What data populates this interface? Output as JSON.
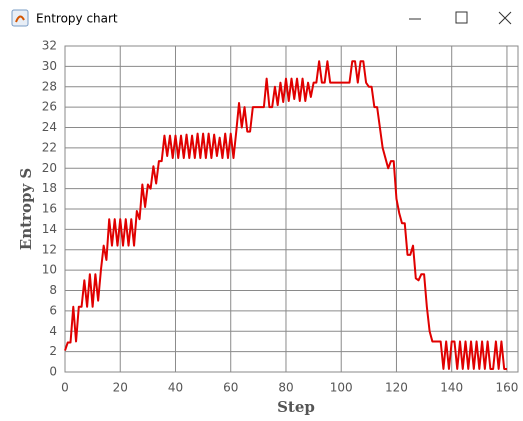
{
  "window": {
    "title": "Entropy chart"
  },
  "chart_data": {
    "type": "line",
    "xlabel": "Step",
    "ylabel": "Entropy S",
    "color": "#e00000",
    "grid": true,
    "xlim": [
      0,
      164
    ],
    "ylim": [
      0,
      32
    ],
    "xticks": [
      0,
      20,
      40,
      60,
      80,
      100,
      120,
      140,
      160
    ],
    "yticks": [
      0,
      2,
      4,
      6,
      8,
      10,
      12,
      14,
      16,
      18,
      20,
      22,
      24,
      26,
      28,
      30,
      32
    ],
    "x": [
      0,
      1,
      2,
      3,
      4,
      5,
      6,
      7,
      8,
      9,
      10,
      11,
      12,
      13,
      14,
      15,
      16,
      17,
      18,
      19,
      20,
      21,
      22,
      23,
      24,
      25,
      26,
      27,
      28,
      29,
      30,
      31,
      32,
      33,
      34,
      35,
      36,
      37,
      38,
      39,
      40,
      41,
      42,
      43,
      44,
      45,
      46,
      47,
      48,
      49,
      50,
      51,
      52,
      53,
      54,
      55,
      56,
      57,
      58,
      59,
      60,
      61,
      62,
      63,
      64,
      65,
      66,
      67,
      68,
      69,
      70,
      71,
      72,
      73,
      74,
      75,
      76,
      77,
      78,
      79,
      80,
      81,
      82,
      83,
      84,
      85,
      86,
      87,
      88,
      89,
      90,
      91,
      92,
      93,
      94,
      95,
      96,
      97,
      98,
      99,
      100,
      101,
      102,
      103,
      104,
      105,
      106,
      107,
      108,
      109,
      110,
      111,
      112,
      113,
      114,
      115,
      116,
      117,
      118,
      119,
      120,
      121,
      122,
      123,
      124,
      125,
      126,
      127,
      128,
      129,
      130,
      131,
      132,
      133,
      134,
      135,
      136,
      137,
      138,
      139,
      140,
      141,
      142,
      143,
      144,
      145,
      146,
      147,
      148,
      149,
      150,
      151,
      152,
      153,
      154,
      155,
      156,
      157,
      158,
      159,
      160
    ],
    "values": [
      2.1,
      2.9,
      2.9,
      6.4,
      3.0,
      6.4,
      6.4,
      9.0,
      6.4,
      9.6,
      6.4,
      9.6,
      7.0,
      10.0,
      12.4,
      11.0,
      15.0,
      12.4,
      15.0,
      12.4,
      15.0,
      12.4,
      15.0,
      12.4,
      15.0,
      12.4,
      15.8,
      15.0,
      18.4,
      16.2,
      18.4,
      18.0,
      20.2,
      18.5,
      20.7,
      20.7,
      23.2,
      21.2,
      23.2,
      21.0,
      23.2,
      21.0,
      23.2,
      21.0,
      23.3,
      21.0,
      23.2,
      21.0,
      23.4,
      21.0,
      23.4,
      21.0,
      23.4,
      21.0,
      23.3,
      21.2,
      23.0,
      21.0,
      23.4,
      21.0,
      23.4,
      21.0,
      23.6,
      26.4,
      24.0,
      26.0,
      23.6,
      23.6,
      26.0,
      26.0,
      26.0,
      26.0,
      26.0,
      28.8,
      26.0,
      26.0,
      28.0,
      26.2,
      28.4,
      26.5,
      28.8,
      26.6,
      28.8,
      26.8,
      28.8,
      26.6,
      28.8,
      26.6,
      28.4,
      27.0,
      28.4,
      28.4,
      30.5,
      28.4,
      28.4,
      30.5,
      28.4,
      28.4,
      28.4,
      28.4,
      28.4,
      28.4,
      28.4,
      28.4,
      30.5,
      30.5,
      28.4,
      30.5,
      30.5,
      28.4,
      28.0,
      28.0,
      26.0,
      26.0,
      24.0,
      22.0,
      21.0,
      20.0,
      20.7,
      20.7,
      17.0,
      15.6,
      14.6,
      14.6,
      11.5,
      11.5,
      12.4,
      9.2,
      9.0,
      9.6,
      9.6,
      6.4,
      4.0,
      3.0,
      3.0,
      3.0,
      3.0,
      0.3,
      3.0,
      0.3,
      3.0,
      3.0,
      0.3,
      3.0,
      0.3,
      3.0,
      0.3,
      3.0,
      0.3,
      3.0,
      0.3,
      3.0,
      0.3,
      3.0,
      0.3,
      0.3,
      3.0,
      0.3,
      3.0,
      0.3,
      0.3
    ]
  }
}
